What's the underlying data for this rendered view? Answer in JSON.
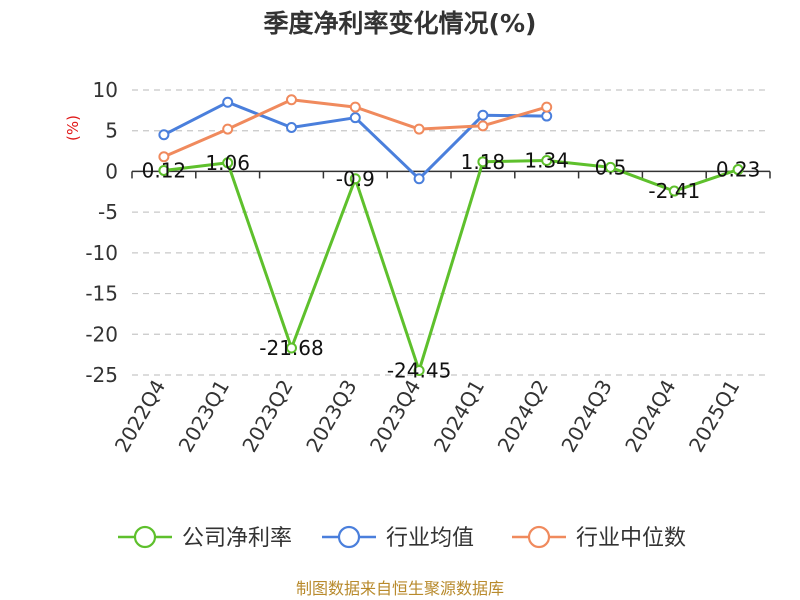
{
  "chart_data": {
    "type": "line",
    "title": "季度净利率变化情况(%)",
    "ylabel": "(%)",
    "xlabel": "",
    "categories": [
      "2022Q4",
      "2023Q1",
      "2023Q2",
      "2023Q3",
      "2023Q4",
      "2024Q1",
      "2024Q2",
      "2024Q3",
      "2024Q4",
      "2025Q1"
    ],
    "ylim": [
      -25,
      10
    ],
    "yticks": [
      10,
      5,
      0,
      -5,
      -10,
      -15,
      -20,
      -25
    ],
    "grid": true,
    "legend_position": "bottom",
    "series": [
      {
        "name": "公司净利率",
        "color": "#5ec02c",
        "values": [
          0.12,
          1.06,
          -21.68,
          -0.9,
          -24.45,
          1.18,
          1.34,
          0.5,
          -2.41,
          0.23
        ],
        "labels": [
          "0.12",
          "1.06",
          "-21.68",
          "-0.9",
          "-24.45",
          "1.18",
          "1.34",
          "0.5",
          "-2.41",
          "0.23"
        ]
      },
      {
        "name": "行业均值",
        "color": "#4a7fdc",
        "values": [
          4.5,
          8.5,
          5.4,
          6.6,
          -0.9,
          6.9,
          6.8,
          null,
          null,
          null
        ]
      },
      {
        "name": "行业中位数",
        "color": "#f08a5d",
        "values": [
          1.8,
          5.2,
          8.8,
          7.9,
          5.2,
          5.6,
          7.9,
          null,
          null,
          null
        ]
      }
    ]
  },
  "footer": {
    "source": "制图数据来自恒生聚源数据库"
  }
}
